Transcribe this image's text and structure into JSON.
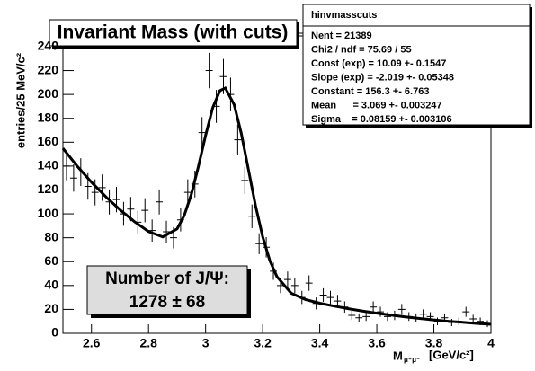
{
  "chart_data": {
    "type": "histogram",
    "title": "Invariant Mass (with cuts)",
    "ylabel": "entries/25 MeV/c²",
    "xlabel": {
      "main": "M",
      "sub": "μ⁺μ⁻",
      "unit": "[GeV/c²]"
    },
    "annotation": {
      "line1": "Number of J/Ψ:",
      "line2": "1278 ± 68"
    },
    "stats": {
      "title": "hinvmasscuts",
      "lines": [
        "Nent = 21389",
        "Chi2 / ndf = 75.69 / 55",
        "Const (exp) = 10.09 +- 0.1547",
        "Slope (exp) = -2.019 +- 0.05348",
        "Constant = 156.3 +- 6.763",
        "Mean      = 3.069 +- 0.003247",
        "Sigma    = 0.08159 +- 0.003106"
      ]
    },
    "bins": [
      2.5,
      2.525,
      2.55,
      2.575,
      2.6,
      2.625,
      2.65,
      2.675,
      2.7,
      2.725,
      2.75,
      2.775,
      2.8,
      2.825,
      2.85,
      2.875,
      2.9,
      2.925,
      2.95,
      2.975,
      3,
      3.025,
      3.05,
      3.075,
      3.1,
      3.125,
      3.15,
      3.175,
      3.2,
      3.225,
      3.25,
      3.275,
      3.3,
      3.325,
      3.35,
      3.375,
      3.4,
      3.425,
      3.45,
      3.475,
      3.5,
      3.525,
      3.55,
      3.575,
      3.6,
      3.625,
      3.65,
      3.675,
      3.7,
      3.725,
      3.75,
      3.775,
      3.8,
      3.825,
      3.85,
      3.875,
      3.9,
      3.925,
      3.95,
      3.975,
      4
    ],
    "values": [
      140,
      130,
      135,
      123,
      118,
      122,
      110,
      112,
      100,
      104,
      93,
      103,
      86,
      110,
      85,
      80,
      95,
      118,
      125,
      168,
      220,
      190,
      215,
      200,
      162,
      128,
      98,
      75,
      72,
      52,
      40,
      45,
      40,
      30,
      42,
      25,
      32,
      30,
      27,
      22,
      15,
      13,
      14,
      22,
      18,
      14,
      15,
      20,
      14,
      13,
      16,
      14,
      10,
      13,
      9,
      10,
      18,
      12,
      10,
      8
    ],
    "errors": [
      11.8,
      11.4,
      11.6,
      11.1,
      10.9,
      11,
      10.5,
      10.6,
      10,
      10.2,
      9.6,
      10.1,
      9.3,
      10.5,
      9.2,
      8.9,
      9.7,
      10.9,
      11.2,
      13,
      14.8,
      13.8,
      14.7,
      14.1,
      12.7,
      11.3,
      9.9,
      8.7,
      8.5,
      7.2,
      6.3,
      6.7,
      6.3,
      5.5,
      6.5,
      5,
      5.7,
      5.5,
      5.2,
      4.7,
      3.9,
      3.6,
      3.7,
      4.7,
      4.2,
      3.7,
      3.9,
      4.5,
      3.7,
      3.6,
      4,
      3.7,
      3.2,
      3.6,
      3,
      3.2,
      4.2,
      3.5,
      3.2,
      2.8
    ],
    "color": "#000000",
    "fit": {
      "color": "#000000",
      "x": [
        2.5,
        2.55,
        2.6,
        2.65,
        2.7,
        2.75,
        2.8,
        2.85,
        2.9,
        2.925,
        2.95,
        2.975,
        3,
        3.025,
        3.05,
        3.069,
        3.1,
        3.125,
        3.15,
        3.175,
        3.2,
        3.225,
        3.25,
        3.3,
        3.35,
        3.4,
        3.45,
        3.5,
        3.55,
        3.6,
        3.65,
        3.7,
        3.75,
        3.8,
        3.85,
        3.9,
        3.95,
        4
      ],
      "values": [
        154.9,
        139.9,
        126.5,
        114.4,
        103.4,
        93.6,
        85.2,
        80.7,
        87.4,
        98.6,
        116.4,
        139.9,
        165.7,
        188.9,
        203.1,
        205.4,
        191.5,
        167.4,
        137.2,
        106.8,
        80.8,
        60.9,
        47.4,
        33.6,
        28.2,
        25.2,
        22.8,
        20.6,
        18.6,
        16.8,
        15.2,
        13.7,
        12.4,
        11.2,
        10.1,
        9.2,
        8.3,
        7.5
      ]
    },
    "xlim": [
      2.5,
      4
    ],
    "xticks": [
      2.6,
      2.8,
      3,
      3.2,
      3.4,
      3.6,
      3.8,
      4
    ],
    "ylim": [
      0,
      249
    ],
    "yticks": [
      0,
      20,
      40,
      60,
      80,
      100,
      120,
      140,
      160,
      180,
      200,
      220,
      240
    ],
    "grid": false
  }
}
